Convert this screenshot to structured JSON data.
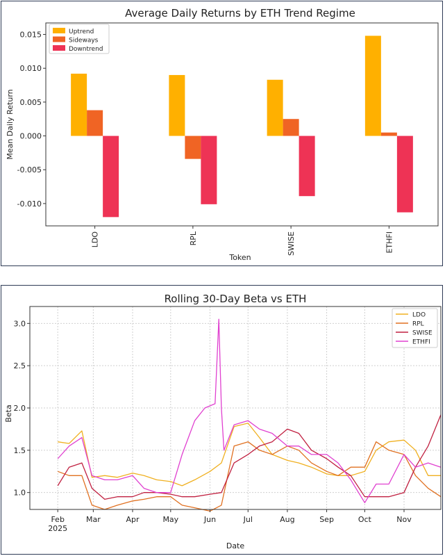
{
  "chart_data": [
    {
      "type": "bar",
      "title": "Average Daily Returns by ETH Trend Regime",
      "xlabel": "Token",
      "ylabel": "Mean Daily Return",
      "categories": [
        "LDO",
        "RPL",
        "SWISE",
        "ETHFI"
      ],
      "ylim": [
        -0.0133,
        0.0167
      ],
      "yticks": [
        0.015,
        0.01,
        0.005,
        0.0,
        -0.005,
        -0.01
      ],
      "ytick_labels": [
        "0.015",
        "0.010",
        "0.005",
        "0.000",
        "-0.005",
        "-0.010"
      ],
      "grid": false,
      "legend": "top-left",
      "series": [
        {
          "name": "Uptrend",
          "color": "#ffb000",
          "values": [
            0.0092,
            0.009,
            0.0083,
            0.0148
          ]
        },
        {
          "name": "Sideways",
          "color": "#f06424",
          "values": [
            0.0038,
            -0.0034,
            0.0025,
            0.0005
          ]
        },
        {
          "name": "Downtrend",
          "color": "#ee3355",
          "values": [
            -0.012,
            -0.0101,
            -0.0089,
            -0.0113
          ]
        }
      ]
    },
    {
      "type": "line",
      "title": "Rolling 30-Day Beta vs ETH",
      "xlabel": "Date",
      "ylabel": "Beta",
      "xlim": [
        "2025-01-10",
        "2025-11-30"
      ],
      "ylim": [
        0.8,
        3.2
      ],
      "yticks": [
        1.0,
        1.5,
        2.0,
        2.5,
        3.0
      ],
      "ytick_labels": [
        "1.0",
        "1.5",
        "2.0",
        "2.5",
        "3.0"
      ],
      "xticks": [
        "2025-02-01",
        "2025-03-01",
        "2025-04-01",
        "2025-05-01",
        "2025-06-01",
        "2025-07-01",
        "2025-08-01",
        "2025-09-01",
        "2025-10-01",
        "2025-11-01"
      ],
      "xtick_labels": [
        "Feb\n2025",
        "Mar",
        "Apr",
        "May",
        "Jun",
        "Jul",
        "Aug",
        "Sep",
        "Oct",
        "Nov"
      ],
      "grid": true,
      "legend": "top-right",
      "series": [
        {
          "name": "LDO",
          "color": "#f0b020",
          "x": [
            "2025-02-01",
            "2025-02-10",
            "2025-02-20",
            "2025-02-28",
            "2025-03-10",
            "2025-03-20",
            "2025-04-01",
            "2025-04-10",
            "2025-04-20",
            "2025-05-01",
            "2025-05-10",
            "2025-05-20",
            "2025-06-01",
            "2025-06-10",
            "2025-06-20",
            "2025-07-01",
            "2025-07-10",
            "2025-07-20",
            "2025-08-01",
            "2025-08-10",
            "2025-08-20",
            "2025-09-01",
            "2025-09-10",
            "2025-09-20",
            "2025-10-01",
            "2025-10-10",
            "2025-10-20",
            "2025-11-01",
            "2025-11-10",
            "2025-11-20",
            "2025-11-30"
          ],
          "y": [
            1.6,
            1.58,
            1.73,
            1.18,
            1.2,
            1.18,
            1.23,
            1.2,
            1.15,
            1.13,
            1.08,
            1.15,
            1.25,
            1.35,
            1.78,
            1.82,
            1.65,
            1.45,
            1.38,
            1.35,
            1.3,
            1.22,
            1.2,
            1.2,
            1.25,
            1.5,
            1.6,
            1.62,
            1.5,
            1.2,
            1.2
          ]
        },
        {
          "name": "RPL",
          "color": "#e07020",
          "x": [
            "2025-02-01",
            "2025-02-10",
            "2025-02-20",
            "2025-02-28",
            "2025-03-10",
            "2025-03-20",
            "2025-04-01",
            "2025-04-10",
            "2025-04-20",
            "2025-05-01",
            "2025-05-10",
            "2025-05-20",
            "2025-06-01",
            "2025-06-10",
            "2025-06-20",
            "2025-07-01",
            "2025-07-10",
            "2025-07-20",
            "2025-08-01",
            "2025-08-10",
            "2025-08-20",
            "2025-09-01",
            "2025-09-10",
            "2025-09-20",
            "2025-10-01",
            "2025-10-10",
            "2025-10-20",
            "2025-11-01",
            "2025-11-10",
            "2025-11-20",
            "2025-11-30"
          ],
          "y": [
            1.25,
            1.2,
            1.2,
            0.85,
            0.8,
            0.85,
            0.9,
            0.92,
            0.95,
            0.95,
            0.85,
            0.82,
            0.78,
            0.85,
            1.55,
            1.6,
            1.5,
            1.45,
            1.55,
            1.5,
            1.35,
            1.25,
            1.2,
            1.3,
            1.3,
            1.6,
            1.5,
            1.45,
            1.2,
            1.05,
            0.95
          ]
        },
        {
          "name": "SWISE",
          "color": "#c02040",
          "x": [
            "2025-02-01",
            "2025-02-10",
            "2025-02-20",
            "2025-02-28",
            "2025-03-10",
            "2025-03-20",
            "2025-04-01",
            "2025-04-10",
            "2025-04-20",
            "2025-05-01",
            "2025-05-10",
            "2025-05-20",
            "2025-06-01",
            "2025-06-10",
            "2025-06-20",
            "2025-07-01",
            "2025-07-10",
            "2025-07-20",
            "2025-08-01",
            "2025-08-10",
            "2025-08-20",
            "2025-09-01",
            "2025-09-10",
            "2025-09-20",
            "2025-10-01",
            "2025-10-10",
            "2025-10-20",
            "2025-11-01",
            "2025-11-10",
            "2025-11-20",
            "2025-11-30"
          ],
          "y": [
            1.08,
            1.3,
            1.35,
            1.05,
            0.92,
            0.95,
            0.95,
            1.0,
            1.0,
            0.98,
            0.95,
            0.95,
            0.98,
            1.0,
            1.35,
            1.45,
            1.55,
            1.6,
            1.75,
            1.7,
            1.5,
            1.4,
            1.3,
            1.2,
            0.95,
            0.95,
            0.95,
            1.0,
            1.3,
            1.55,
            1.92
          ]
        },
        {
          "name": "ETHFI",
          "color": "#e040d0",
          "x": [
            "2025-02-01",
            "2025-02-10",
            "2025-02-20",
            "2025-02-28",
            "2025-03-10",
            "2025-03-20",
            "2025-04-01",
            "2025-04-10",
            "2025-04-20",
            "2025-05-01",
            "2025-05-10",
            "2025-05-20",
            "2025-05-28",
            "2025-06-05",
            "2025-06-08",
            "2025-06-10",
            "2025-06-12",
            "2025-06-20",
            "2025-07-01",
            "2025-07-10",
            "2025-07-20",
            "2025-08-01",
            "2025-08-10",
            "2025-08-20",
            "2025-09-01",
            "2025-09-10",
            "2025-09-20",
            "2025-10-01",
            "2025-10-10",
            "2025-10-20",
            "2025-11-01",
            "2025-11-10",
            "2025-11-20",
            "2025-11-30"
          ],
          "y": [
            1.4,
            1.55,
            1.65,
            1.2,
            1.15,
            1.15,
            1.2,
            1.05,
            1.0,
            1.0,
            1.45,
            1.85,
            2.0,
            2.05,
            3.05,
            2.0,
            1.5,
            1.8,
            1.85,
            1.75,
            1.7,
            1.55,
            1.55,
            1.45,
            1.45,
            1.35,
            1.15,
            0.88,
            1.1,
            1.1,
            1.45,
            1.3,
            1.35,
            1.3
          ]
        }
      ]
    }
  ]
}
